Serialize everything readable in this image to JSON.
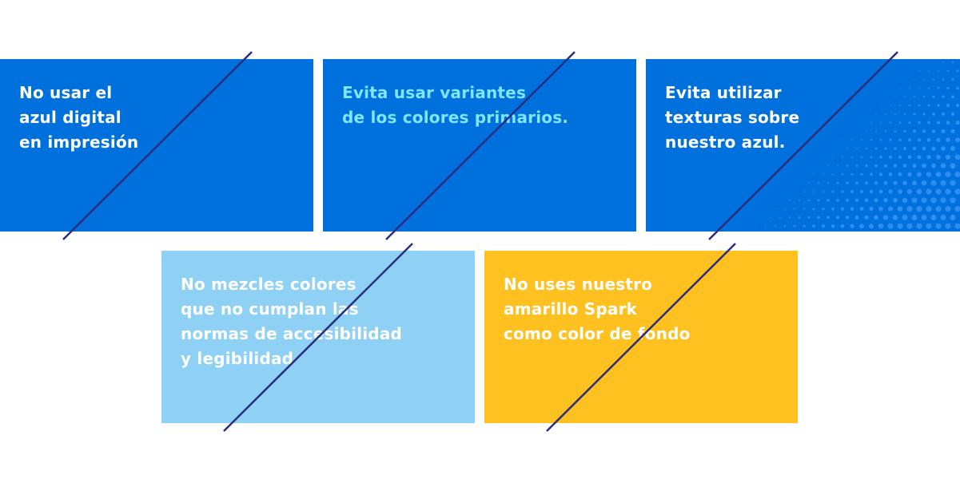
{
  "colors": {
    "digital_blue": "#0071dc",
    "light_blue": "#8ed1f4",
    "spark_yellow": "#ffc120",
    "strike_navy": "#2a2d80",
    "text_white": "#ffffff",
    "text_cyan": "#7fe6ff",
    "texture_dot": "#2b8ef0"
  },
  "cards": [
    {
      "lines": [
        "No usar el",
        "azul digital",
        "en impresión"
      ]
    },
    {
      "lines": [
        "Evita usar variantes",
        "de los colores primarios."
      ]
    },
    {
      "lines": [
        "Evita utilizar",
        "texturas sobre",
        "nuestro azul."
      ]
    },
    {
      "lines": [
        "No mezcles colores",
        "que no cumplan las",
        "normas de accesibilidad",
        "y legibilidad"
      ]
    },
    {
      "lines": [
        "No uses nuestro",
        "amarillo Spark",
        "como color de fondo"
      ]
    }
  ]
}
